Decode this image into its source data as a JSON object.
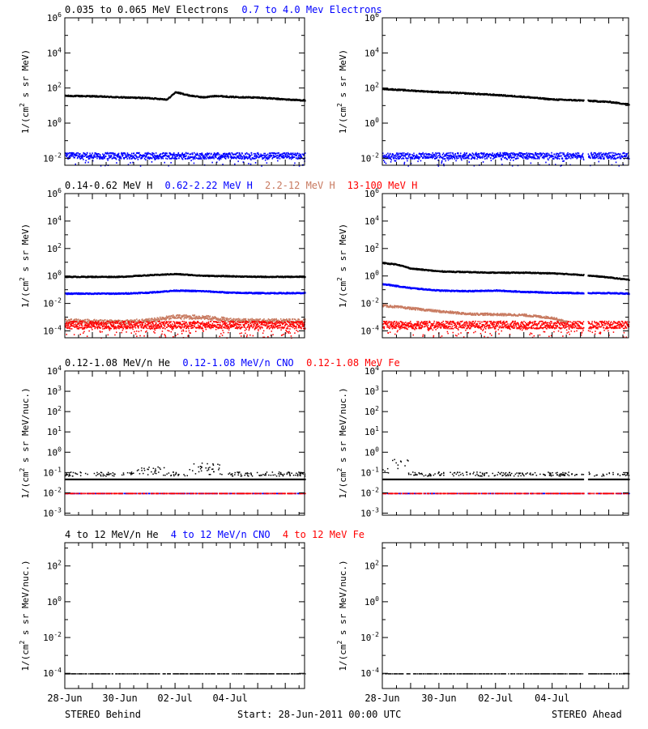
{
  "colors": {
    "black": "#000000",
    "blue": "#0000ff",
    "tan": "#c87a60",
    "red": "#ff0000"
  },
  "ylabel_flux": "1/(cm^2 s sr MeV)",
  "ylabel_nuc": "1/(cm^2 s sr MeV/nuc.)",
  "x_ticks": [
    "28-Jun",
    "30-Jun",
    "02-Jul",
    "04-Jul"
  ],
  "footer": {
    "left": "STEREO Behind",
    "center": "Start: 28-Jun-2011 00:00 UTC",
    "right": "STEREO Ahead"
  },
  "rows": [
    {
      "labels": [
        {
          "text": "0.035 to 0.065 MeV Electrons",
          "color": "black"
        },
        {
          "text": "0.7 to 4.0 Mev Electrons",
          "color": "blue"
        }
      ],
      "yticks": [
        "10^6",
        "10^4",
        "10^2",
        "10^0",
        "10^-2"
      ]
    },
    {
      "labels": [
        {
          "text": "0.14-0.62 MeV H",
          "color": "black"
        },
        {
          "text": "0.62-2.22 MeV H",
          "color": "blue"
        },
        {
          "text": "2.2-12 MeV H",
          "color": "tan"
        },
        {
          "text": "13-100 MeV H",
          "color": "red"
        }
      ],
      "yticks": [
        "10^6",
        "10^4",
        "10^2",
        "10^0",
        "10^-2",
        "10^-4"
      ]
    },
    {
      "labels": [
        {
          "text": "0.12-1.08 MeV/n He",
          "color": "black"
        },
        {
          "text": "0.12-1.08 MeV/n CNO",
          "color": "blue"
        },
        {
          "text": "0.12-1.08 MeV Fe",
          "color": "red"
        }
      ],
      "yticks": [
        "10^4",
        "10^3",
        "10^2",
        "10^1",
        "10^0",
        "10^-1",
        "10^-2",
        "10^-3"
      ]
    },
    {
      "labels": [
        {
          "text": "4 to 12 MeV/n He",
          "color": "black"
        },
        {
          "text": "4 to 12 MeV/n CNO",
          "color": "blue"
        },
        {
          "text": "4 to 12 MeV Fe",
          "color": "red"
        }
      ],
      "yticks": [
        "10^2",
        "10^0",
        "10^-2",
        "10^-4"
      ]
    }
  ],
  "chart_data": [
    {
      "type": "scatter",
      "panel": "behind-electrons",
      "yscale": "log",
      "ylim": [
        0.004,
        3000000
      ],
      "xlabel": "",
      "ylabel": "1/(cm^2 s sr MeV)",
      "x_ticks": [
        "28-Jun",
        "30-Jun",
        "02-Jul",
        "04-Jul"
      ],
      "series": [
        {
          "name": "0.035 to 0.065 MeV Electrons",
          "color": "black",
          "x": [
            0,
            1,
            2,
            3,
            3.7,
            4,
            4.5,
            5,
            5.5,
            6,
            7,
            8,
            8.7
          ],
          "y": [
            40,
            38,
            33,
            30,
            25,
            65,
            42,
            33,
            40,
            35,
            32,
            25,
            22
          ]
        },
        {
          "name": "0.7 to 4.0 Mev Electrons",
          "color": "blue",
          "x": [
            0,
            8.7
          ],
          "y": [
            0.015,
            0.015
          ]
        }
      ]
    },
    {
      "type": "scatter",
      "panel": "ahead-electrons",
      "yscale": "log",
      "ylim": [
        0.004,
        3000000
      ],
      "xlabel": "",
      "ylabel": "1/(cm^2 s sr MeV)",
      "x_ticks": [
        "28-Jun",
        "30-Jun",
        "02-Jul",
        "04-Jul"
      ],
      "series": [
        {
          "name": "0.035 to 0.065 MeV Electrons",
          "color": "black",
          "x": [
            0,
            1,
            2,
            3,
            4,
            5,
            6,
            7,
            7.5,
            8,
            8.7
          ],
          "y": [
            100,
            80,
            65,
            55,
            45,
            35,
            25,
            22,
            20,
            18,
            13
          ]
        },
        {
          "name": "0.7 to 4.0 Mev Electrons",
          "color": "blue",
          "x": [
            0,
            8.7
          ],
          "y": [
            0.015,
            0.015
          ]
        }
      ]
    },
    {
      "type": "scatter",
      "panel": "behind-protons",
      "yscale": "log",
      "ylim": [
        3e-05,
        3000000
      ],
      "xlabel": "",
      "ylabel": "1/(cm^2 s sr MeV)",
      "x_ticks": [
        "28-Jun",
        "30-Jun",
        "02-Jul",
        "04-Jul"
      ],
      "series": [
        {
          "name": "0.14-0.62 MeV H",
          "color": "black",
          "x": [
            0,
            2,
            3,
            4,
            5,
            6,
            7,
            8.7
          ],
          "y": [
            1,
            1,
            1.3,
            1.6,
            1.2,
            1.1,
            1,
            1
          ]
        },
        {
          "name": "0.62-2.22 MeV H",
          "color": "blue",
          "x": [
            0,
            2,
            3,
            4,
            5,
            6,
            7,
            8.7
          ],
          "y": [
            0.06,
            0.06,
            0.07,
            0.1,
            0.09,
            0.07,
            0.065,
            0.065
          ]
        },
        {
          "name": "2.2-12 MeV H",
          "color": "tan",
          "x": [
            0,
            2,
            3,
            4,
            5,
            6,
            7,
            8.7
          ],
          "y": [
            0.0006,
            0.0005,
            0.0006,
            0.0012,
            0.0011,
            0.0007,
            0.0006,
            0.0006
          ]
        },
        {
          "name": "13-100 MeV H",
          "color": "red",
          "x": [
            0,
            8.7
          ],
          "y": [
            0.0003,
            0.0003
          ]
        }
      ]
    },
    {
      "type": "scatter",
      "panel": "ahead-protons",
      "yscale": "log",
      "ylim": [
        3e-05,
        3000000
      ],
      "xlabel": "",
      "ylabel": "1/(cm^2 s sr MeV)",
      "x_ticks": [
        "28-Jun",
        "30-Jun",
        "02-Jul",
        "04-Jul"
      ],
      "series": [
        {
          "name": "0.14-0.62 MeV H",
          "color": "black",
          "x": [
            0,
            0.5,
            1,
            2,
            3,
            4,
            5,
            6,
            7,
            8,
            8.7
          ],
          "y": [
            10,
            8,
            4,
            2.5,
            2.2,
            2,
            2,
            1.8,
            1.4,
            0.9,
            0.6
          ]
        },
        {
          "name": "0.62-2.22 MeV H",
          "color": "blue",
          "x": [
            0,
            1,
            2,
            3,
            4,
            5,
            6,
            7,
            8,
            8.7
          ],
          "y": [
            0.3,
            0.15,
            0.1,
            0.09,
            0.1,
            0.08,
            0.07,
            0.065,
            0.065,
            0.06
          ]
        },
        {
          "name": "2.2-12 MeV H",
          "color": "tan",
          "x": [
            0,
            1,
            2,
            3,
            4,
            5,
            6,
            6.5
          ],
          "y": [
            0.008,
            0.005,
            0.003,
            0.002,
            0.0018,
            0.0016,
            0.001,
            0.0005
          ]
        },
        {
          "name": "13-100 MeV H",
          "color": "red",
          "x": [
            0,
            8.7
          ],
          "y": [
            0.0003,
            0.0003
          ]
        }
      ]
    },
    {
      "type": "scatter",
      "panel": "behind-heavy-low",
      "yscale": "log",
      "ylim": [
        0.0008,
        10000
      ],
      "xlabel": "",
      "ylabel": "1/(cm^2 s sr MeV/nuc.)",
      "x_ticks": [
        "28-Jun",
        "30-Jun",
        "02-Jul",
        "04-Jul"
      ],
      "series": [
        {
          "name": "0.12-1.08 MeV/n He",
          "color": "black",
          "x": [
            0,
            8.7
          ],
          "y": [
            0.05,
            0.05
          ]
        },
        {
          "name": "0.12-1.08 MeV/n CNO",
          "color": "blue",
          "x": [
            0,
            8.7
          ],
          "y": [
            0.01,
            0.01
          ]
        },
        {
          "name": "0.12-1.08 MeV Fe",
          "color": "red",
          "x": [
            0,
            8.7
          ],
          "y": [
            0.01,
            0.01
          ]
        }
      ]
    },
    {
      "type": "scatter",
      "panel": "ahead-heavy-low",
      "yscale": "log",
      "ylim": [
        0.0008,
        10000
      ],
      "xlabel": "",
      "ylabel": "1/(cm^2 s sr MeV/nuc.)",
      "x_ticks": [
        "28-Jun",
        "30-Jun",
        "02-Jul",
        "04-Jul"
      ],
      "series": [
        {
          "name": "0.12-1.08 MeV/n He",
          "color": "black",
          "x": [
            0,
            8.7
          ],
          "y": [
            0.05,
            0.05
          ]
        },
        {
          "name": "0.12-1.08 MeV/n CNO",
          "color": "blue",
          "x": [
            0,
            8.7
          ],
          "y": [
            0.01,
            0.01
          ]
        },
        {
          "name": "0.12-1.08 MeV Fe",
          "color": "red",
          "x": [
            0,
            8.7
          ],
          "y": [
            0.01,
            0.01
          ]
        }
      ]
    },
    {
      "type": "scatter",
      "panel": "behind-heavy-high",
      "yscale": "log",
      "ylim": [
        1e-05,
        2000
      ],
      "xlabel": "",
      "ylabel": "1/(cm^2 s sr MeV/nuc.)",
      "x_ticks": [
        "28-Jun",
        "30-Jun",
        "02-Jul",
        "04-Jul"
      ],
      "series": [
        {
          "name": "4 to 12 MeV/n He",
          "color": "black",
          "x": [
            0,
            8.7
          ],
          "y": [
            0.0001,
            0.0001
          ]
        }
      ]
    },
    {
      "type": "scatter",
      "panel": "ahead-heavy-high",
      "yscale": "log",
      "ylim": [
        1e-05,
        2000
      ],
      "xlabel": "",
      "ylabel": "1/(cm^2 s sr MeV/nuc.)",
      "x_ticks": [
        "28-Jun",
        "30-Jun",
        "02-Jul",
        "04-Jul"
      ],
      "series": [
        {
          "name": "4 to 12 MeV/n He",
          "color": "black",
          "x": [
            0,
            8.7
          ],
          "y": [
            0.0001,
            0.0001
          ]
        }
      ]
    }
  ]
}
